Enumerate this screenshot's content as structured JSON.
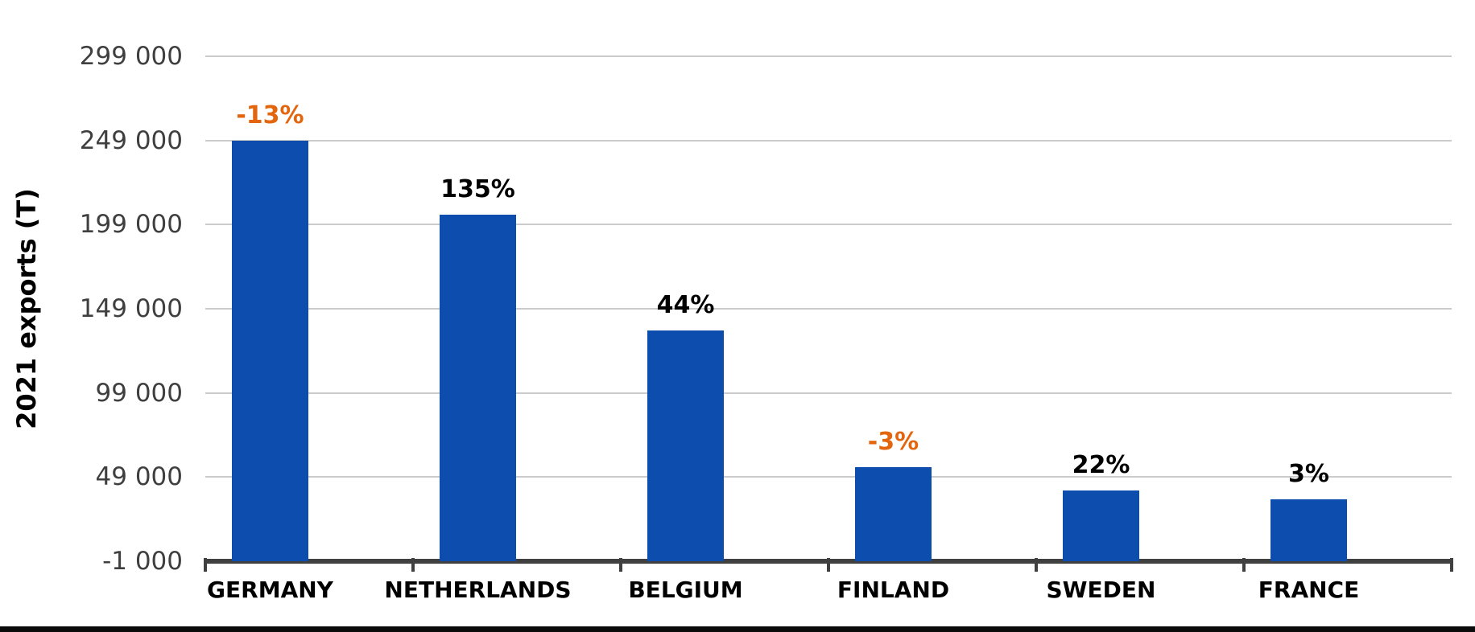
{
  "chart_data": {
    "type": "bar",
    "title": "",
    "xlabel": "",
    "ylabel": "2021 exports (T)",
    "categories": [
      "GERMANY",
      "NETHERLANDS",
      "BELGIUM",
      "FINLAND",
      "SWEDEN",
      "FRANCE"
    ],
    "values": [
      249000,
      205000,
      136000,
      55000,
      41000,
      36000
    ],
    "bar_labels": [
      {
        "text": "-13%",
        "negative": true
      },
      {
        "text": "135%",
        "negative": false
      },
      {
        "text": "44%",
        "negative": false
      },
      {
        "text": "-3%",
        "negative": true
      },
      {
        "text": "22%",
        "negative": false
      },
      {
        "text": "3%",
        "negative": false
      }
    ],
    "y_axis": {
      "min": -1000,
      "max": 299000,
      "step": 50000,
      "tick_labels": [
        "299 000",
        "249 000",
        "199 000",
        "149 000",
        "99 000",
        "49 000",
        "-1 000"
      ]
    },
    "grid": true,
    "legend_position": "none",
    "colors": {
      "bar": "#0c4dae",
      "positive_label": "#000000",
      "negative_label": "#e3650d",
      "gridline": "#cbcbcb",
      "axis_line": "#404040",
      "ytick_text": "#3f3f3f"
    }
  }
}
